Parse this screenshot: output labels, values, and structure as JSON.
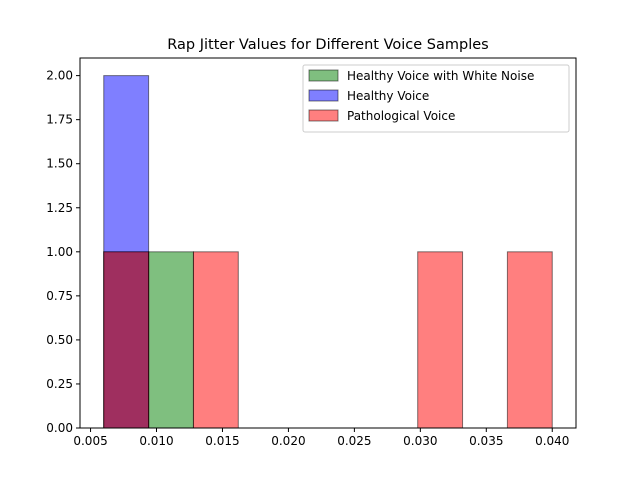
{
  "chart_data": {
    "type": "histogram",
    "title": "Rap Jitter Values for Different Voice Samples",
    "xlabel": "",
    "ylabel": "",
    "xlim": [
      0.0042,
      0.0418
    ],
    "ylim": [
      0,
      2.1
    ],
    "xticks": [
      0.005,
      0.01,
      0.015,
      0.02,
      0.025,
      0.03,
      0.035,
      0.04
    ],
    "xtick_labels": [
      "0.005",
      "0.010",
      "0.015",
      "0.020",
      "0.025",
      "0.030",
      "0.035",
      "0.040"
    ],
    "yticks": [
      0,
      0.25,
      0.5,
      0.75,
      1.0,
      1.25,
      1.5,
      1.75,
      2.0
    ],
    "ytick_labels": [
      "0.00",
      "0.25",
      "0.50",
      "0.75",
      "1.00",
      "1.25",
      "1.50",
      "1.75",
      "2.00"
    ],
    "bin_edges": [
      0.006,
      0.0094,
      0.0128,
      0.0162,
      0.0196,
      0.023,
      0.0264,
      0.0298,
      0.0332,
      0.0366,
      0.04
    ],
    "legend_position": "upper-right",
    "alpha": 0.5,
    "series": [
      {
        "name": "Healthy Voice with White Noise",
        "color": "#008000",
        "counts": [
          1,
          1,
          0,
          0,
          0,
          0,
          0,
          0,
          0,
          0
        ]
      },
      {
        "name": "Healthy Voice",
        "color": "#0000ff",
        "counts": [
          2,
          0,
          0,
          0,
          0,
          0,
          0,
          0,
          0,
          0
        ]
      },
      {
        "name": "Pathological Voice",
        "color": "#ff0000",
        "counts": [
          1,
          0,
          1,
          0,
          0,
          0,
          0,
          1,
          0,
          1
        ]
      }
    ]
  }
}
